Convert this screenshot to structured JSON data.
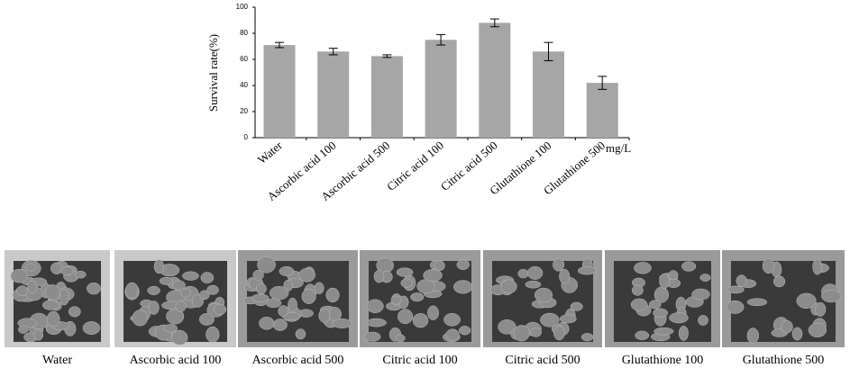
{
  "chart_data": {
    "type": "bar",
    "y_label": "Survival rate(%)",
    "unit_label": "mg/L",
    "categories": [
      "Water",
      "Ascorbic acid 100",
      "Ascorbic acid 500",
      "Citric acid 100",
      "Citric acid 500",
      "Glutathione 100",
      "Glutathione 500"
    ],
    "values": [
      71,
      66,
      62.5,
      75,
      88,
      66,
      42
    ],
    "errors": [
      2,
      2.5,
      1,
      4,
      3,
      7,
      5
    ],
    "color": "#a6a6a6",
    "ylim": [
      0,
      100
    ],
    "yticks": [
      0,
      20,
      40,
      60,
      80,
      100
    ]
  },
  "photos": [
    {
      "label": "Water"
    },
    {
      "label": "Ascorbic acid 100"
    },
    {
      "label": "Ascorbic acid 500"
    },
    {
      "label": "Citric acid 100"
    },
    {
      "label": "Citric acid 500"
    },
    {
      "label": "Glutathione 100"
    },
    {
      "label": "Glutathione 500"
    }
  ]
}
